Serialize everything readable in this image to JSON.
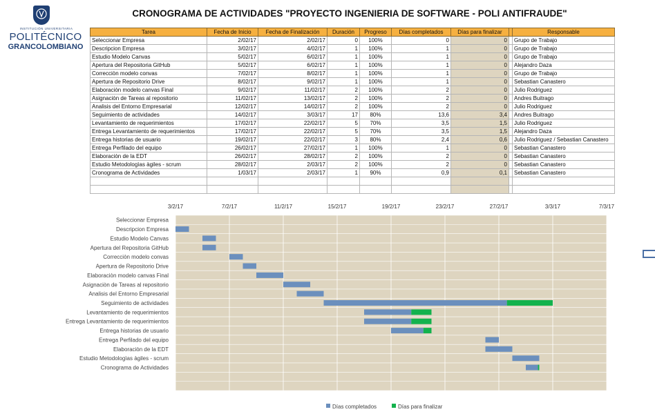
{
  "logo": {
    "institution": "INSTITUCIÓN UNIVERSITARIA",
    "name_line1": "POLITÉCNICO",
    "name_line2": "GRANCOLOMBIANO"
  },
  "title": "CRONOGRAMA DE ACTIVIDADES \"PROYECTO INGENIERIA DE SOFTWARE - POLI ANTIFRAUDE\"",
  "table": {
    "headers": [
      "Tarea",
      "Fecha de Inicio",
      "Fecha de Finalización",
      "Duración",
      "Progreso",
      "Días completados",
      "Días para finalizar",
      "Responsable"
    ],
    "rows": [
      [
        "Seleccionar Empresa",
        "2/02/17",
        "2/02/17",
        "0",
        "100%",
        "0",
        "0",
        "Grupo de Trabajo"
      ],
      [
        "Descripcion Empresa",
        "3/02/17",
        "4/02/17",
        "1",
        "100%",
        "1",
        "0",
        "Grupo de Trabajo"
      ],
      [
        "Estudio Modelo Canvas",
        "5/02/17",
        "6/02/17",
        "1",
        "100%",
        "1",
        "0",
        "Grupo de Trabajo"
      ],
      [
        "Apertura del Repositoria GitHub",
        "5/02/17",
        "6/02/17",
        "1",
        "100%",
        "1",
        "0",
        "Alejandro Daza"
      ],
      [
        "Correcciòn modelo convas",
        "7/02/17",
        "8/02/17",
        "1",
        "100%",
        "1",
        "0",
        "Grupo de Trabajo"
      ],
      [
        "Apertura de Repositorio Drive",
        "8/02/17",
        "9/02/17",
        "1",
        "100%",
        "1",
        "0",
        "Sebastian Canastero"
      ],
      [
        "Elaboraciòn modelo canvas Final",
        "9/02/17",
        "11/02/17",
        "2",
        "100%",
        "2",
        "0",
        "Julio Rodriguez"
      ],
      [
        "Asignaciòn de Tareas al repositorio",
        "11/02/17",
        "13/02/17",
        "2",
        "100%",
        "2",
        "0",
        "Andres Buitrago"
      ],
      [
        "Analisis del Entorno Empresarial",
        "12/02/17",
        "14/02/17",
        "2",
        "100%",
        "2",
        "0",
        "Julio Rodriguez"
      ],
      [
        "Seguimiento de actividades",
        "14/02/17",
        "3/03/17",
        "17",
        "80%",
        "13,6",
        "3,4",
        "Andres Buitrago"
      ],
      [
        "Levantamiento de requerimientos",
        "17/02/17",
        "22/02/17",
        "5",
        "70%",
        "3,5",
        "1,5",
        "Julio Rodriguez"
      ],
      [
        "Entrega Levantamiento de requerimientos",
        "17/02/17",
        "22/02/17",
        "5",
        "70%",
        "3,5",
        "1,5",
        "Alejandro Daza"
      ],
      [
        "Entrega historias de usuario",
        "19/02/17",
        "22/02/17",
        "3",
        "80%",
        "2,4",
        "0,6",
        "Julio Rodriguez / Sebastian Canastero"
      ],
      [
        "Entrega Perfilado del equipo",
        "26/02/17",
        "27/02/17",
        "1",
        "100%",
        "1",
        "0",
        "Sebastian Canastero"
      ],
      [
        "Elaboraciòn de la EDT",
        "26/02/17",
        "28/02/17",
        "2",
        "100%",
        "2",
        "0",
        "Sebastian Canastero"
      ],
      [
        "Estudio Metodologìas àgiles - scrum",
        "28/02/17",
        "2/03/17",
        "2",
        "100%",
        "2",
        "0",
        "Sebastian Canastero"
      ],
      [
        "Cronograma de Actividades",
        "1/03/17",
        "2/03/17",
        "1",
        "90%",
        "0,9",
        "0,1",
        "Sebastian Canastero"
      ]
    ]
  },
  "chart_data": {
    "type": "bar",
    "orientation": "horizontal-stacked-gantt",
    "x_ticks": [
      "3/2/17",
      "7/2/17",
      "11/2/17",
      "15/2/17",
      "19/2/17",
      "23/2/17",
      "27/2/17",
      "3/3/17",
      "7/3/17"
    ],
    "xlim": [
      "2017-02-03",
      "2017-03-07"
    ],
    "categories": [
      "Seleccionar Empresa",
      "Descripcion Empresa",
      "Estudio Modelo Canvas",
      "Apertura del Repositoria GitHub",
      "Correcciòn modelo convas",
      "Apertura de Repositorio Drive",
      "Elaboraciòn modelo canvas Final",
      "Asignaciòn de Tareas al repositorio",
      "Analisis del Entorno Empresarial",
      "Seguimiento de actividades",
      "Levantamiento de requerimientos",
      "Entrega Levantamiento de requerimientos",
      "Entrega historias de usuario",
      "Entrega Perfilado del equipo",
      "Elaboraciòn de la EDT",
      "Estudio Metodologìas àgiles - scrum",
      "Cronograma de Actividades"
    ],
    "start_dates": [
      "2017-02-02",
      "2017-02-03",
      "2017-02-05",
      "2017-02-05",
      "2017-02-07",
      "2017-02-08",
      "2017-02-09",
      "2017-02-11",
      "2017-02-12",
      "2017-02-14",
      "2017-02-17",
      "2017-02-17",
      "2017-02-19",
      "2017-02-26",
      "2017-02-26",
      "2017-02-28",
      "2017-03-01"
    ],
    "series": [
      {
        "name": "Días completados",
        "color": "#6b8fbd",
        "values": [
          0,
          1,
          1,
          1,
          1,
          1,
          2,
          2,
          2,
          13.6,
          3.5,
          3.5,
          2.4,
          1,
          2,
          2,
          0.9
        ]
      },
      {
        "name": "Días para finalizar",
        "color": "#13b24d",
        "values": [
          0,
          0,
          0,
          0,
          0,
          0,
          0,
          0,
          0,
          3.4,
          1.5,
          1.5,
          0.6,
          0,
          0,
          0,
          0.1
        ]
      }
    ],
    "grid": true,
    "legend": "bottom",
    "plot_background": "#ded5c0"
  }
}
